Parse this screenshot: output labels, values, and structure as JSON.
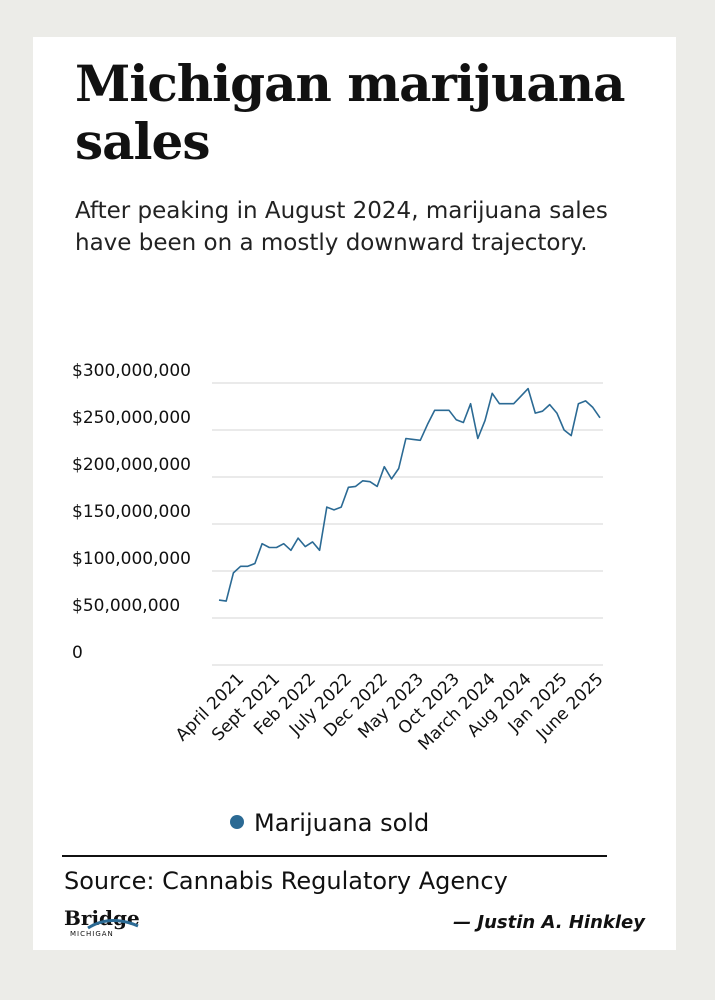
{
  "chart_data": {
    "type": "line",
    "title": "Michigan marijuana sales",
    "subtitle": "After peaking in August 2024, marijuana sales have been on a mostly downward trajectory.",
    "categories": [
      null,
      null,
      null,
      "April 2021",
      null,
      null,
      null,
      null,
      "Sept 2021",
      null,
      null,
      null,
      null,
      "Feb 2022",
      null,
      null,
      null,
      null,
      "July 2022",
      null,
      null,
      null,
      null,
      "Dec 2022",
      null,
      null,
      null,
      null,
      "May 2023",
      null,
      null,
      null,
      null,
      "Oct 2023",
      null,
      null,
      null,
      null,
      "March 2024",
      null,
      null,
      null,
      null,
      "Aug 2024",
      null,
      null,
      null,
      null,
      "Jan 2025",
      null,
      null,
      null,
      null,
      "June 2025"
    ],
    "series": [
      {
        "name": "Marijuana sold",
        "color": "#2b6a94",
        "values": [
          69000000,
          68000000,
          98000000,
          105000000,
          105000000,
          108000000,
          129000000,
          125000000,
          125000000,
          129000000,
          122000000,
          135000000,
          126000000,
          131000000,
          122000000,
          168000000,
          165000000,
          168000000,
          189000000,
          190000000,
          196000000,
          195000000,
          190000000,
          211000000,
          198000000,
          209000000,
          241000000,
          240000000,
          239000000,
          256000000,
          271000000,
          271000000,
          271000000,
          261000000,
          258000000,
          278000000,
          241000000,
          260000000,
          289000000,
          278000000,
          278000000,
          278000000,
          286000000,
          294000000,
          268000000,
          270000000,
          277000000,
          268000000,
          250000000,
          244000000,
          278000000,
          281000000,
          274000000,
          263000000
        ]
      }
    ],
    "ylim": [
      0,
      300000000
    ],
    "yticks": [
      0,
      {
        "value": 50000000,
        "label": "$50,000,000"
      },
      {
        "value": 100000000,
        "label": "$100,000,000"
      },
      {
        "value": 150000000,
        "label": "$150,000,000"
      },
      {
        "value": 200000000,
        "label": "$200,000,000"
      },
      {
        "value": 250000000,
        "label": "$250,000,000"
      },
      {
        "value": 300000000,
        "label": "$300,000,000"
      }
    ],
    "grid": true,
    "legend": "bottom",
    "source": "Source: Cannabis Regulatory Agency",
    "logo": {
      "name": "Bridge",
      "sub": "MICHIGAN"
    },
    "byline": "— Justin A. Hinkley"
  }
}
